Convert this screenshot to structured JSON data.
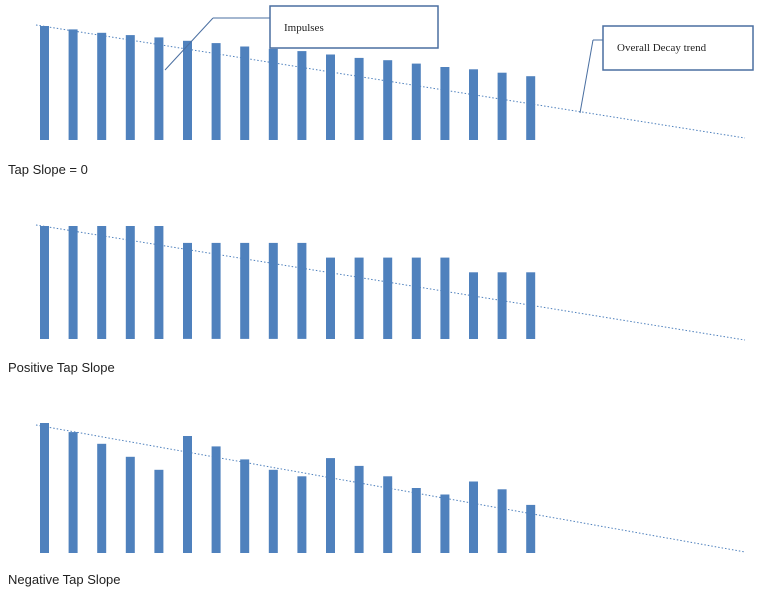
{
  "colors": {
    "bar": "#4f81bd",
    "trend": "#4f81bd",
    "callout_border": "#4a6fa1"
  },
  "callouts": {
    "impulses": "Impulses",
    "decay": "Overall Decay trend"
  },
  "panels": [
    {
      "caption": "Tap Slope = 0",
      "bar_heights": [
        1.0,
        0.97,
        0.94,
        0.92,
        0.9,
        0.87,
        0.85,
        0.82,
        0.8,
        0.78,
        0.75,
        0.72,
        0.7,
        0.67,
        0.64,
        0.62,
        0.59,
        0.56
      ]
    },
    {
      "caption": "Positive Tap Slope",
      "bar_heights": [
        1.0,
        1.0,
        1.0,
        1.0,
        1.0,
        0.85,
        0.85,
        0.85,
        0.85,
        0.85,
        0.72,
        0.72,
        0.72,
        0.72,
        0.72,
        0.59,
        0.59,
        0.59
      ]
    },
    {
      "caption": "Negative Tap Slope",
      "bar_heights": [
        1.0,
        0.93,
        0.84,
        0.74,
        0.64,
        0.9,
        0.82,
        0.72,
        0.64,
        0.59,
        0.73,
        0.67,
        0.59,
        0.5,
        0.45,
        0.55,
        0.49,
        0.37
      ]
    }
  ]
}
